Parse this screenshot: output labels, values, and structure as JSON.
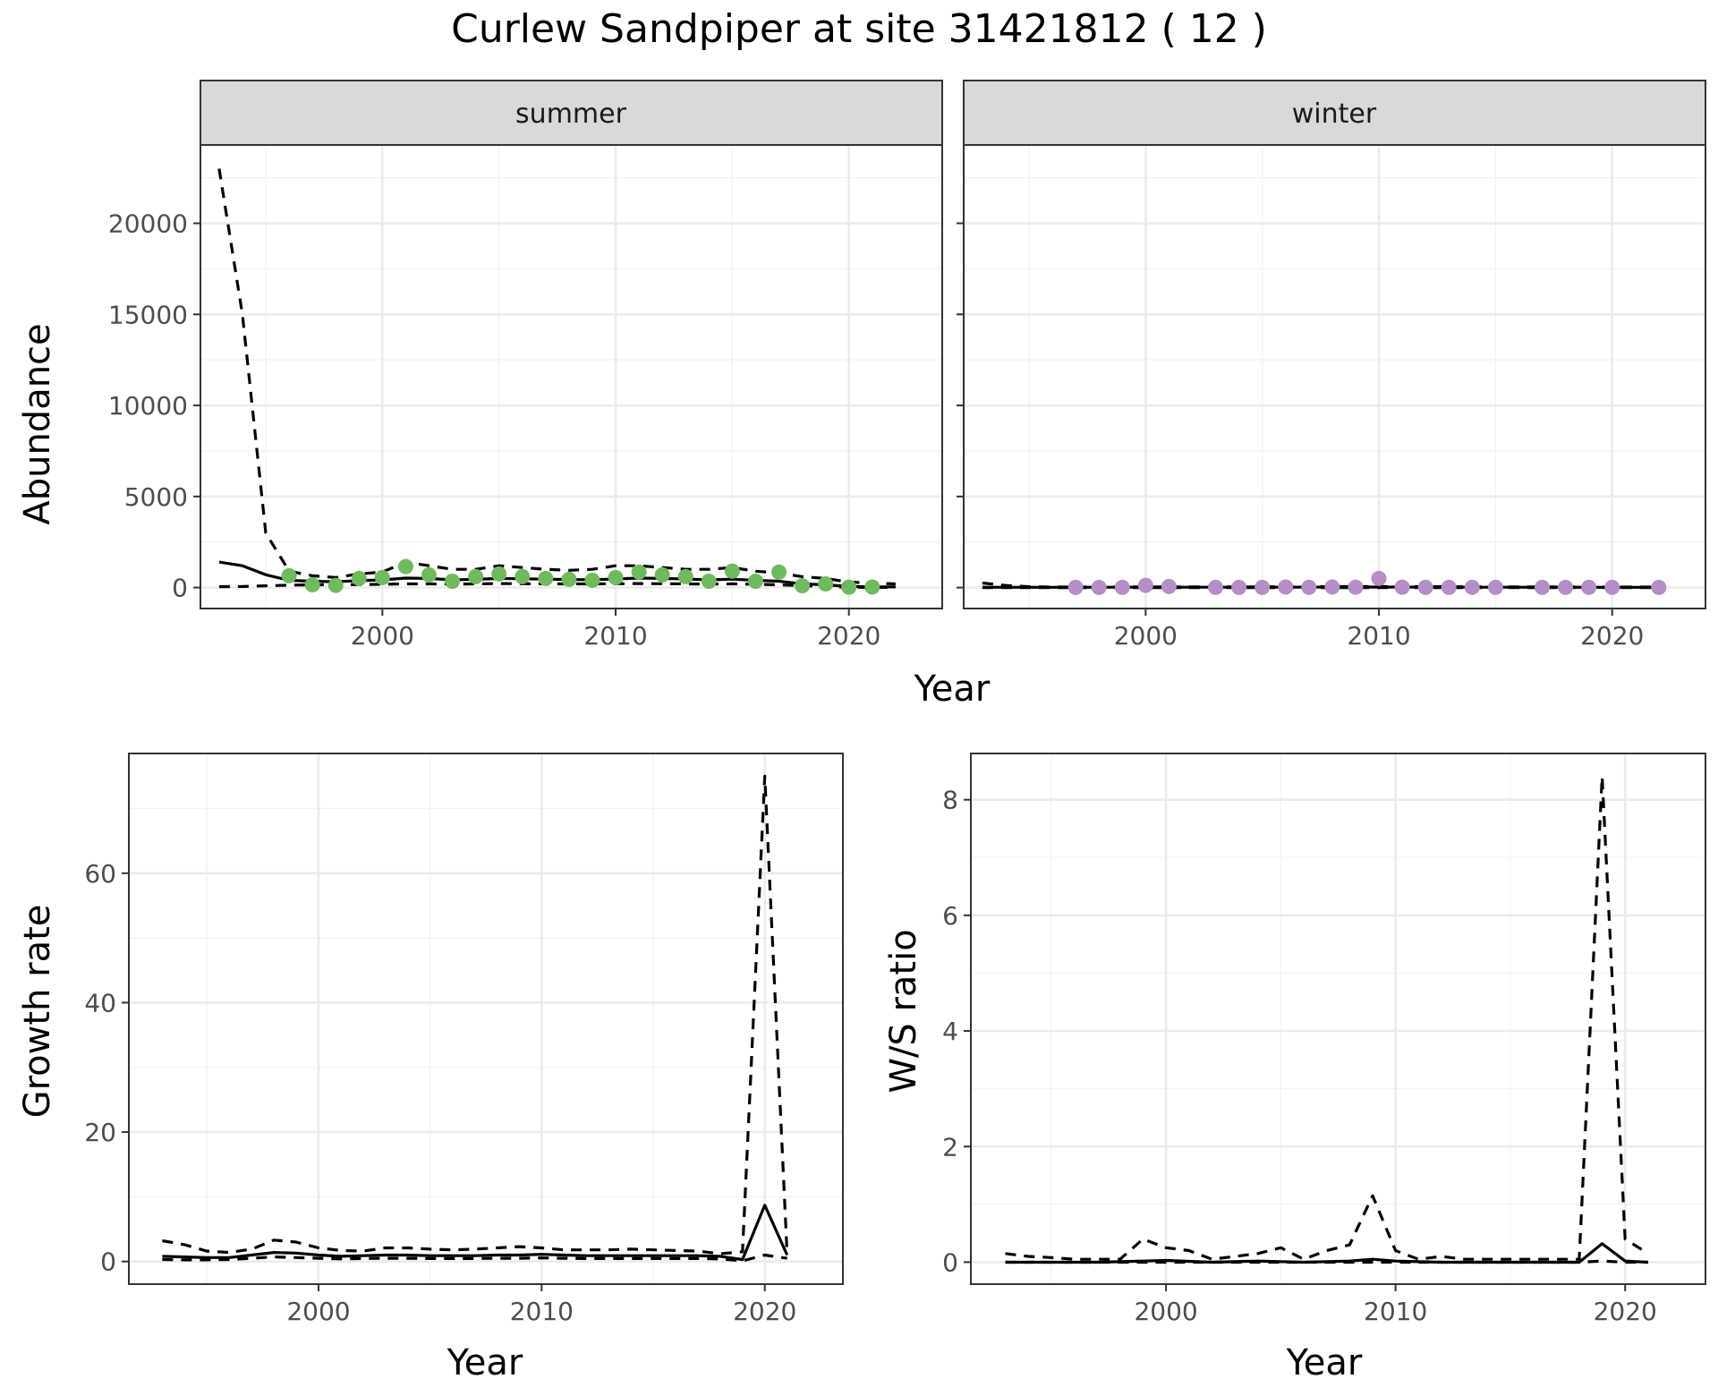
{
  "title": "Curlew Sandpiper at site 31421812 ( 12 )",
  "chart_data": [
    {
      "type": "scatter",
      "facet": "summer",
      "xlabel": "Year",
      "ylabel": "Abundance",
      "xlim": [
        1992.2,
        2024.0
      ],
      "ylim": [
        -1150,
        24300
      ],
      "xticks": [
        2000,
        2010,
        2020
      ],
      "yticks": [
        0,
        5000,
        10000,
        15000,
        20000
      ],
      "point_color": "#6dbb5a",
      "points": {
        "x": [
          1996,
          1997,
          1998,
          1999,
          2000,
          2001,
          2002,
          2003,
          2004,
          2005,
          2006,
          2007,
          2008,
          2009,
          2010,
          2011,
          2012,
          2013,
          2014,
          2015,
          2016,
          2017,
          2018,
          2019,
          2020,
          2021
        ],
        "y": [
          650,
          150,
          120,
          500,
          550,
          1150,
          700,
          350,
          600,
          750,
          600,
          500,
          450,
          400,
          550,
          850,
          700,
          600,
          350,
          900,
          350,
          850,
          100,
          200,
          20,
          30
        ]
      },
      "lines": [
        {
          "style": "solid",
          "x": [
            1993,
            1994,
            1995,
            1996,
            1997,
            1998,
            1999,
            2000,
            2001,
            2002,
            2003,
            2004,
            2005,
            2006,
            2007,
            2008,
            2009,
            2010,
            2011,
            2012,
            2013,
            2014,
            2015,
            2016,
            2017,
            2018,
            2019,
            2020,
            2021,
            2022
          ],
          "y": [
            1400,
            1200,
            700,
            400,
            350,
            320,
            380,
            420,
            520,
            500,
            420,
            450,
            500,
            480,
            460,
            440,
            430,
            470,
            520,
            500,
            470,
            420,
            460,
            400,
            350,
            200,
            150,
            60,
            40,
            40
          ]
        },
        {
          "style": "dashed",
          "x": [
            1993,
            1994,
            1995,
            1996,
            1997,
            1998,
            1999,
            2000,
            2001,
            2002,
            2003,
            2004,
            2005,
            2006,
            2007,
            2008,
            2009,
            2010,
            2011,
            2012,
            2013,
            2014,
            2015,
            2016,
            2017,
            2018,
            2019,
            2020,
            2021,
            2022
          ],
          "y": [
            23000,
            15000,
            3000,
            900,
            650,
            550,
            750,
            850,
            1400,
            1200,
            1000,
            1000,
            1200,
            1100,
            1000,
            950,
            1000,
            1200,
            1200,
            1100,
            1000,
            1000,
            1100,
            900,
            800,
            600,
            500,
            300,
            250,
            200
          ]
        },
        {
          "style": "dashed",
          "x": [
            1993,
            1994,
            1995,
            1996,
            1997,
            1998,
            1999,
            2000,
            2001,
            2002,
            2003,
            2004,
            2005,
            2006,
            2007,
            2008,
            2009,
            2010,
            2011,
            2012,
            2013,
            2014,
            2015,
            2016,
            2017,
            2018,
            2019,
            2020,
            2021,
            2022
          ],
          "y": [
            50,
            60,
            100,
            130,
            150,
            150,
            160,
            180,
            200,
            200,
            190,
            200,
            220,
            210,
            200,
            200,
            200,
            210,
            220,
            210,
            200,
            190,
            200,
            180,
            150,
            100,
            60,
            20,
            10,
            10
          ]
        }
      ]
    },
    {
      "type": "scatter",
      "facet": "winter",
      "xlabel": "Year",
      "ylabel": "Abundance",
      "xlim": [
        1992.2,
        2024.0
      ],
      "ylim": [
        -1150,
        24300
      ],
      "xticks": [
        2000,
        2010,
        2020
      ],
      "yticks": [
        0,
        5000,
        10000,
        15000,
        20000
      ],
      "point_color": "#b48ec8",
      "points": {
        "x": [
          1997,
          1998,
          1999,
          2000,
          2001,
          2003,
          2004,
          2005,
          2006,
          2007,
          2008,
          2009,
          2010,
          2011,
          2012,
          2013,
          2014,
          2015,
          2017,
          2018,
          2019,
          2020,
          2022
        ],
        "y": [
          10,
          10,
          10,
          120,
          60,
          10,
          10,
          10,
          30,
          10,
          30,
          20,
          500,
          20,
          10,
          10,
          10,
          10,
          10,
          10,
          10,
          10,
          10
        ]
      },
      "lines": [
        {
          "style": "solid",
          "x": [
            1993,
            1995,
            2000,
            2005,
            2010,
            2015,
            2020,
            2022
          ],
          "y": [
            20,
            15,
            20,
            20,
            30,
            20,
            15,
            15
          ]
        },
        {
          "style": "dashed",
          "x": [
            1993,
            1994,
            1995,
            1996,
            2000,
            2005,
            2010,
            2015,
            2020,
            2022
          ],
          "y": [
            250,
            120,
            50,
            30,
            40,
            40,
            60,
            40,
            30,
            30
          ]
        },
        {
          "style": "dashed",
          "x": [
            1993,
            2000,
            2010,
            2020,
            2022
          ],
          "y": [
            0,
            0,
            0,
            0,
            0
          ]
        }
      ]
    },
    {
      "type": "line",
      "xlabel": "Year",
      "ylabel": "Growth rate",
      "xlim": [
        1991.5,
        2023.5
      ],
      "ylim": [
        -3.5,
        78.5
      ],
      "xticks": [
        2000,
        2010,
        2020
      ],
      "yticks": [
        0,
        20,
        40,
        60
      ],
      "lines": [
        {
          "style": "solid",
          "x": [
            1993,
            1994,
            1995,
            1996,
            1997,
            1998,
            1999,
            2000,
            2001,
            2002,
            2003,
            2004,
            2005,
            2006,
            2007,
            2008,
            2009,
            2010,
            2011,
            2012,
            2013,
            2014,
            2015,
            2016,
            2017,
            2018,
            2019,
            2020,
            2021
          ],
          "y": [
            0.8,
            0.7,
            0.6,
            0.6,
            1.0,
            1.4,
            1.3,
            1.0,
            0.8,
            0.9,
            1.0,
            1.0,
            0.9,
            0.9,
            0.9,
            1.0,
            1.0,
            1.1,
            1.0,
            0.9,
            0.9,
            0.9,
            0.9,
            0.9,
            0.9,
            0.8,
            0.3,
            8.7,
            1.0
          ]
        },
        {
          "style": "dashed",
          "x": [
            1993,
            1994,
            1995,
            1996,
            1997,
            1998,
            1999,
            2000,
            2001,
            2002,
            2003,
            2004,
            2005,
            2006,
            2007,
            2008,
            2009,
            2010,
            2011,
            2012,
            2013,
            2014,
            2015,
            2016,
            2017,
            2018,
            2019,
            2020,
            2021
          ],
          "y": [
            3.2,
            2.6,
            1.6,
            1.4,
            1.9,
            3.3,
            3.0,
            2.1,
            1.7,
            1.6,
            2.1,
            2.1,
            1.9,
            1.8,
            1.9,
            2.1,
            2.3,
            2.1,
            1.8,
            1.8,
            1.8,
            1.9,
            1.8,
            1.7,
            1.6,
            1.2,
            1.5,
            75.0,
            1.0
          ]
        },
        {
          "style": "dashed",
          "x": [
            1993,
            1994,
            1995,
            1996,
            1997,
            1998,
            1999,
            2000,
            2001,
            2002,
            2003,
            2004,
            2005,
            2006,
            2007,
            2008,
            2009,
            2010,
            2011,
            2012,
            2013,
            2014,
            2015,
            2016,
            2017,
            2018,
            2019,
            2020,
            2021
          ],
          "y": [
            0.3,
            0.25,
            0.25,
            0.3,
            0.5,
            0.7,
            0.6,
            0.5,
            0.4,
            0.45,
            0.5,
            0.5,
            0.45,
            0.45,
            0.45,
            0.5,
            0.5,
            0.55,
            0.5,
            0.45,
            0.45,
            0.45,
            0.45,
            0.45,
            0.45,
            0.4,
            0.1,
            1.0,
            0.5
          ]
        }
      ]
    },
    {
      "type": "line",
      "xlabel": "Year",
      "ylabel": "W/S ratio",
      "xlim": [
        1991.5,
        2023.5
      ],
      "ylim": [
        -0.38,
        8.8
      ],
      "xticks": [
        2000,
        2010,
        2020
      ],
      "yticks": [
        0,
        2,
        4,
        6,
        8
      ],
      "lines": [
        {
          "style": "solid",
          "x": [
            1993,
            1995,
            1997,
            1999,
            2000,
            2002,
            2004,
            2006,
            2008,
            2009,
            2010,
            2012,
            2014,
            2016,
            2018,
            2019,
            2020,
            2021
          ],
          "y": [
            0.0,
            0.0,
            0.0,
            0.02,
            0.03,
            0.0,
            0.02,
            0.0,
            0.02,
            0.05,
            0.02,
            0.0,
            0.0,
            0.0,
            0.0,
            0.32,
            0.02,
            0.0
          ]
        },
        {
          "style": "dashed",
          "x": [
            1993,
            1994,
            1995,
            1996,
            1997,
            1998,
            1999,
            2000,
            2001,
            2002,
            2003,
            2004,
            2005,
            2006,
            2007,
            2008,
            2009,
            2010,
            2011,
            2012,
            2013,
            2014,
            2015,
            2016,
            2017,
            2018,
            2019,
            2020,
            2021
          ],
          "y": [
            0.15,
            0.1,
            0.08,
            0.05,
            0.05,
            0.05,
            0.4,
            0.25,
            0.2,
            0.05,
            0.1,
            0.15,
            0.25,
            0.05,
            0.2,
            0.3,
            1.15,
            0.2,
            0.05,
            0.1,
            0.05,
            0.05,
            0.05,
            0.05,
            0.05,
            0.05,
            8.4,
            0.4,
            0.15
          ]
        },
        {
          "style": "dashed",
          "x": [
            1993,
            2000,
            2005,
            2010,
            2015,
            2018,
            2019,
            2020,
            2021
          ],
          "y": [
            0.0,
            0.0,
            0.0,
            0.0,
            0.0,
            0.0,
            0.02,
            0.0,
            0.0
          ]
        }
      ]
    }
  ],
  "facet_labels": [
    "summer",
    "winter"
  ]
}
